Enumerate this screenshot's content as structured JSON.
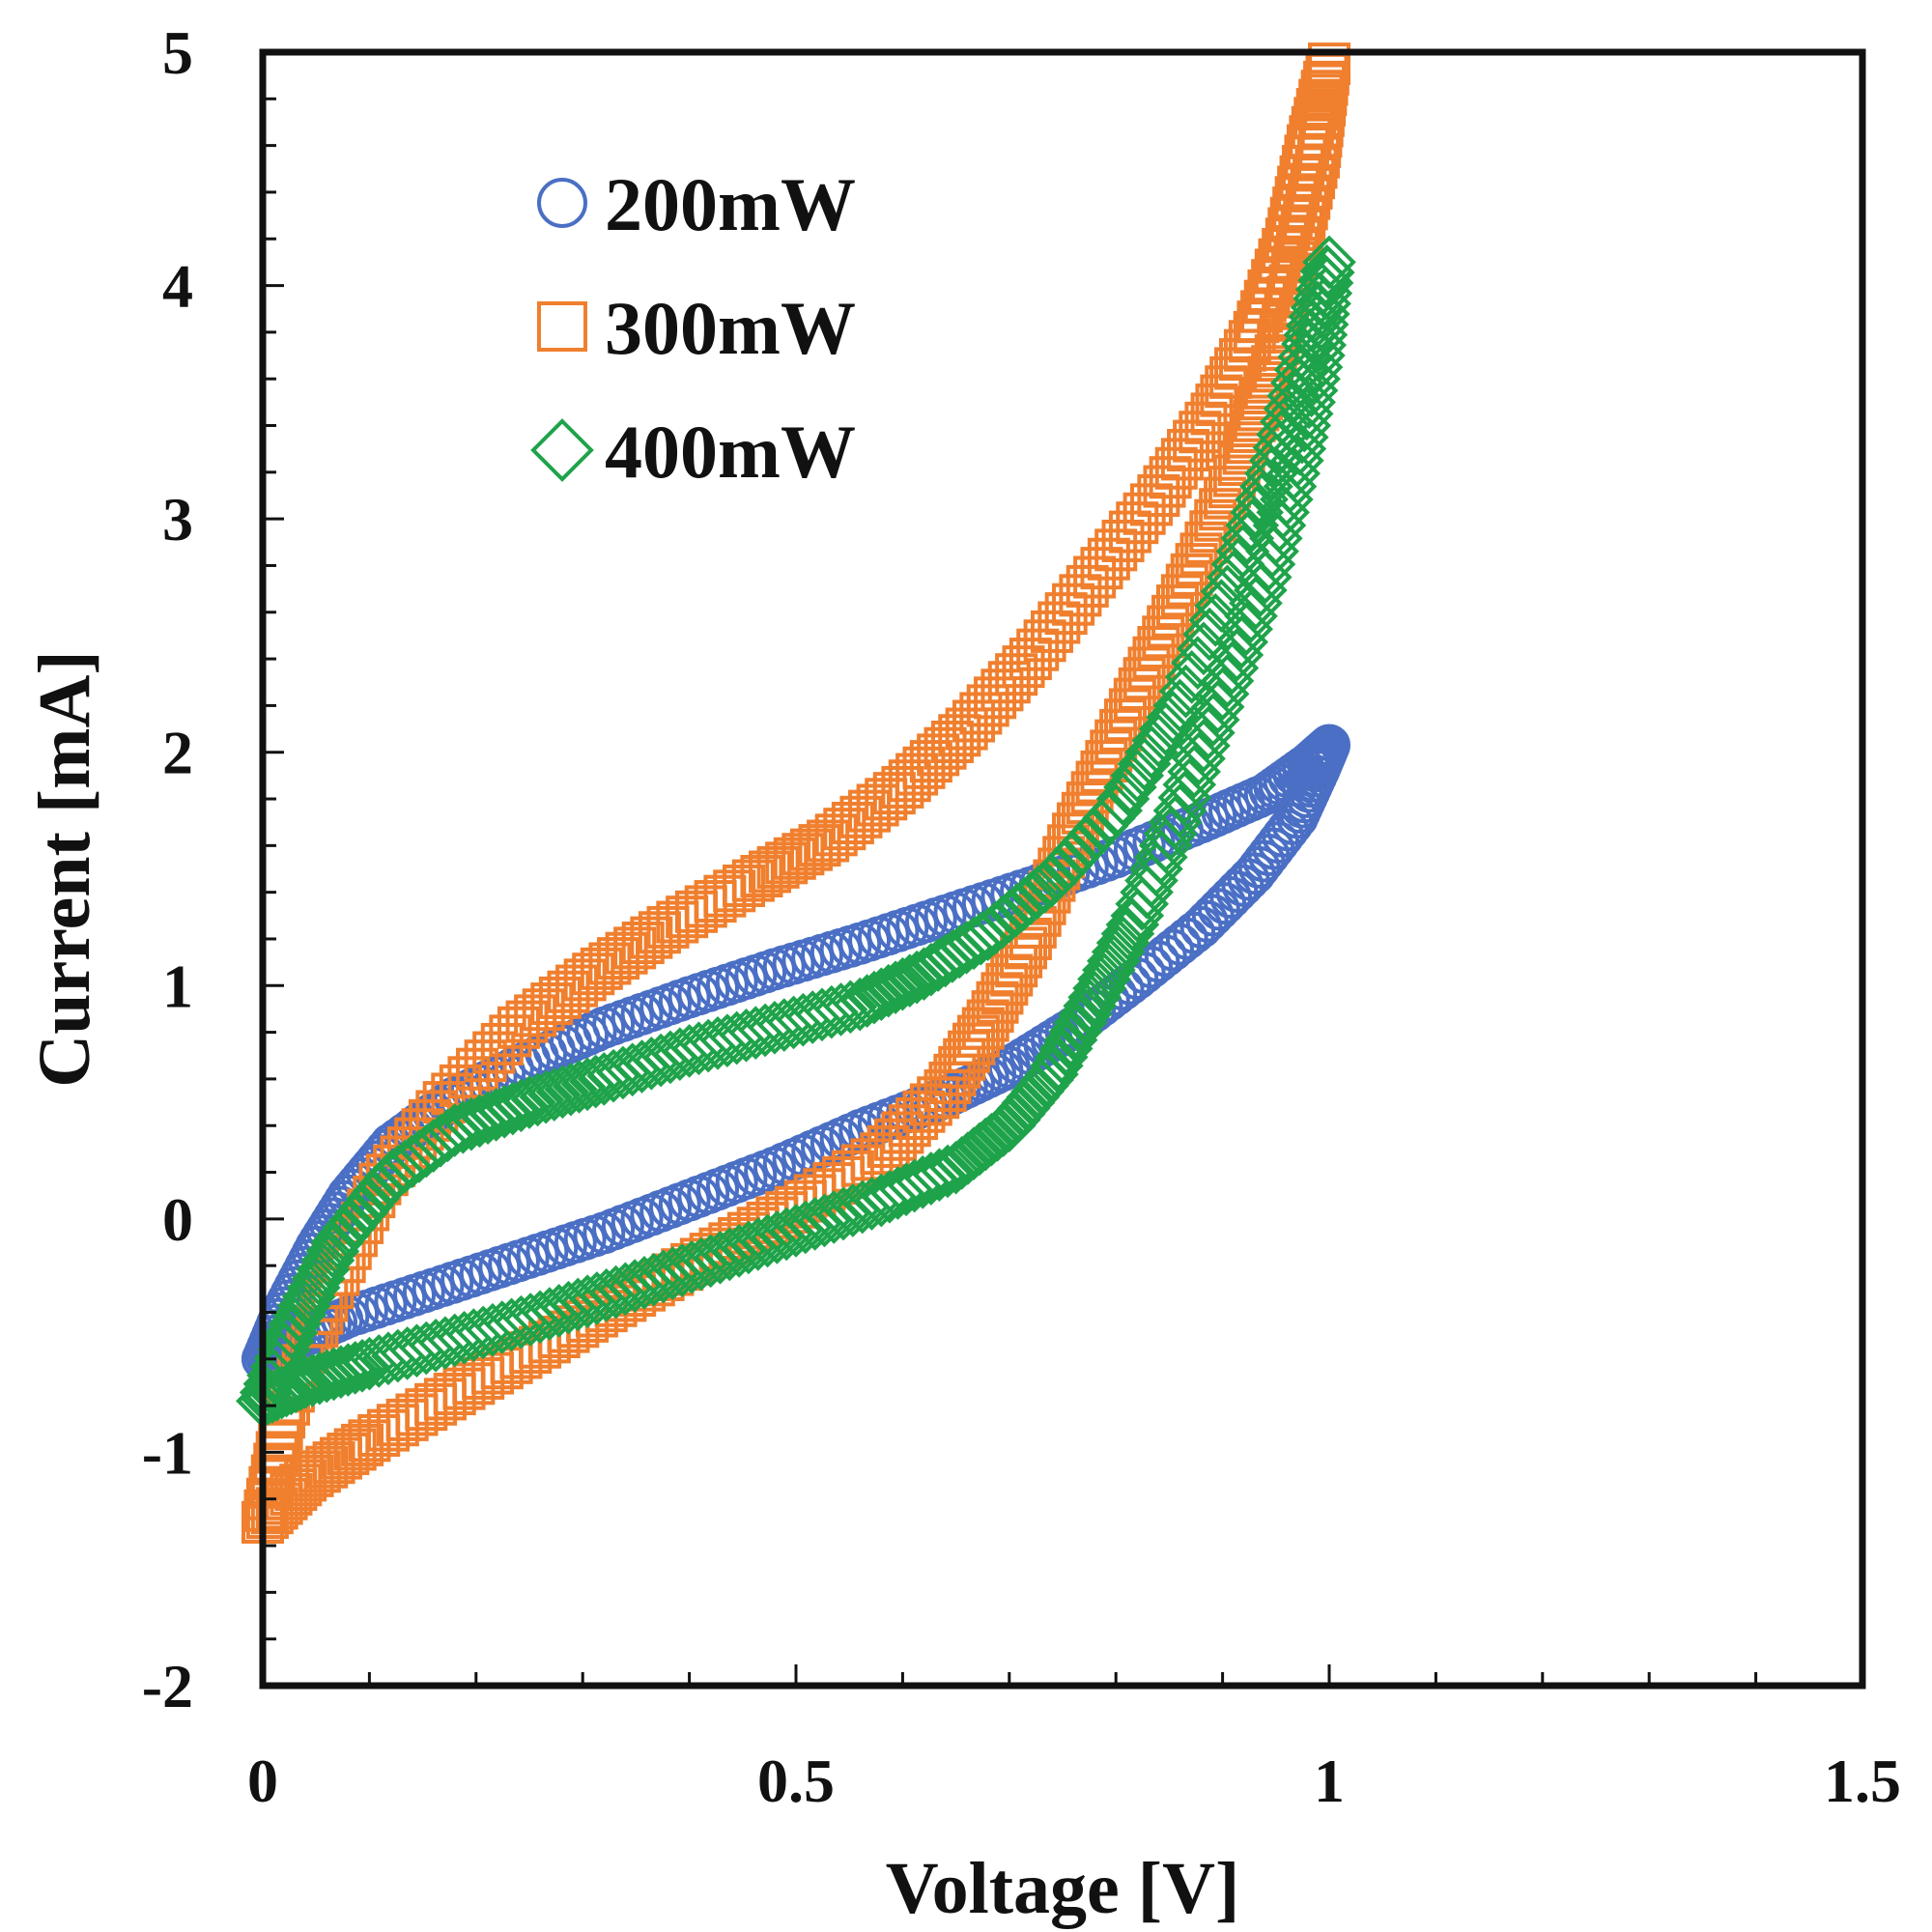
{
  "chart_data": {
    "type": "scatter",
    "title": "",
    "xlabel": "Voltage [V]",
    "ylabel": "Current [mA]",
    "xlim": [
      0,
      1.5
    ],
    "ylim": [
      -2,
      5
    ],
    "x_ticks": [
      0,
      0.5,
      1,
      1.5
    ],
    "x_tick_labels": [
      "0",
      "0.5",
      "1",
      "1.5"
    ],
    "y_ticks": [
      -2,
      -1,
      0,
      1,
      2,
      3,
      4,
      5
    ],
    "y_tick_labels": [
      "-2",
      "-1",
      "0",
      "1",
      "2",
      "3",
      "4",
      "5"
    ],
    "grid": false,
    "legend_position": "top-left",
    "series": [
      {
        "name": "200mW",
        "marker": "circle",
        "color": "#4a6fc4",
        "x": [
          0,
          0.02,
          0.05,
          0.08,
          0.12,
          0.18,
          0.25,
          0.32,
          0.4,
          0.48,
          0.56,
          0.64,
          0.72,
          0.8,
          0.88,
          0.94,
          0.98,
          1.0,
          0.99,
          0.97,
          0.93,
          0.88,
          0.82,
          0.76,
          0.7,
          0.64,
          0.56,
          0.48,
          0.4,
          0.32,
          0.24,
          0.16,
          0.08,
          0.03,
          0
        ],
        "y": [
          -0.6,
          -0.38,
          -0.12,
          0.1,
          0.32,
          0.52,
          0.68,
          0.82,
          0.95,
          1.07,
          1.18,
          1.3,
          1.42,
          1.55,
          1.7,
          1.82,
          1.95,
          2.03,
          1.92,
          1.72,
          1.48,
          1.25,
          1.03,
          0.82,
          0.65,
          0.52,
          0.38,
          0.22,
          0.08,
          -0.06,
          -0.18,
          -0.3,
          -0.42,
          -0.52,
          -0.6
        ]
      },
      {
        "name": "300mW",
        "marker": "square",
        "color": "#f07f2e",
        "x": [
          0,
          0.02,
          0.06,
          0.11,
          0.17,
          0.24,
          0.31,
          0.38,
          0.46,
          0.53,
          0.6,
          0.66,
          0.72,
          0.78,
          0.84,
          0.89,
          0.93,
          0.96,
          0.98,
          1.0,
          0.99,
          0.97,
          0.95,
          0.92,
          0.88,
          0.84,
          0.8,
          0.76,
          0.72,
          0.68,
          0.64,
          0.58,
          0.5,
          0.42,
          0.34,
          0.26,
          0.18,
          0.1,
          0.04,
          0
        ],
        "y": [
          -1.3,
          -0.85,
          -0.35,
          0.15,
          0.5,
          0.82,
          1.05,
          1.25,
          1.45,
          1.62,
          1.85,
          2.1,
          2.4,
          2.75,
          3.1,
          3.45,
          3.8,
          4.2,
          4.6,
          4.95,
          4.55,
          4.15,
          3.7,
          3.28,
          2.85,
          2.45,
          2.05,
          1.65,
          1.2,
          0.85,
          0.55,
          0.28,
          0.05,
          -0.15,
          -0.35,
          -0.55,
          -0.75,
          -0.95,
          -1.12,
          -1.3
        ]
      },
      {
        "name": "400mW",
        "marker": "diamond",
        "color": "#1fa34a",
        "x": [
          0,
          0.03,
          0.07,
          0.12,
          0.18,
          0.25,
          0.32,
          0.4,
          0.48,
          0.56,
          0.62,
          0.68,
          0.74,
          0.8,
          0.86,
          0.91,
          0.95,
          0.98,
          1.0,
          0.99,
          0.97,
          0.94,
          0.9,
          0.86,
          0.82,
          0.78,
          0.74,
          0.7,
          0.65,
          0.58,
          0.5,
          0.42,
          0.34,
          0.26,
          0.18,
          0.1,
          0.04,
          0
        ],
        "y": [
          -0.78,
          -0.45,
          -0.1,
          0.18,
          0.38,
          0.5,
          0.6,
          0.72,
          0.82,
          0.92,
          1.05,
          1.22,
          1.45,
          1.75,
          2.2,
          2.75,
          3.25,
          3.75,
          4.1,
          3.7,
          3.25,
          2.75,
          2.25,
          1.75,
          1.3,
          0.95,
          0.62,
          0.4,
          0.22,
          0.08,
          -0.05,
          -0.18,
          -0.3,
          -0.42,
          -0.52,
          -0.62,
          -0.7,
          -0.78
        ]
      }
    ]
  }
}
